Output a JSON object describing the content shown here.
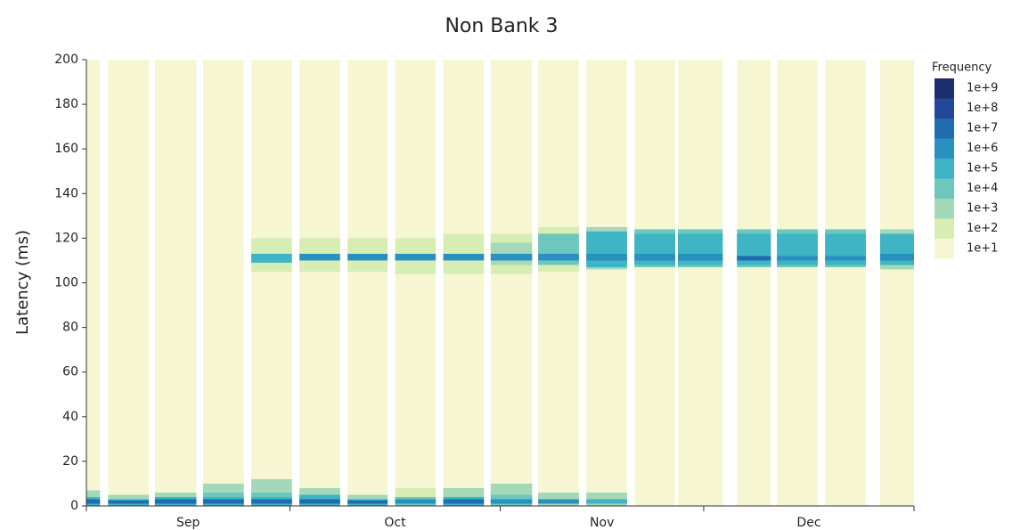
{
  "chart_data": {
    "type": "heatmap",
    "title": "Non Bank 3",
    "y_label": "Latency (ms)",
    "ylim": [
      0,
      200
    ],
    "yticks": [
      0,
      20,
      40,
      60,
      80,
      100,
      120,
      140,
      160,
      180,
      200
    ],
    "xlim": [
      0,
      122
    ],
    "xticks": [
      0,
      30,
      61,
      91,
      122
    ],
    "month_labels": [
      "Sep",
      "Oct",
      "Nov",
      "Dec"
    ],
    "legend_title": "Frequency",
    "legend": [
      {
        "value": 9,
        "label": "1e+9",
        "color": "#1d2e6e"
      },
      {
        "value": 8,
        "label": "1e+8",
        "color": "#22479b"
      },
      {
        "value": 7,
        "label": "1e+7",
        "color": "#1f6cb0"
      },
      {
        "value": 6,
        "label": "1e+6",
        "color": "#2a90c0"
      },
      {
        "value": 5,
        "label": "1e+5",
        "color": "#3eb4c4"
      },
      {
        "value": 4,
        "label": "1e+4",
        "color": "#6cc7bf"
      },
      {
        "value": 3,
        "label": "1e+3",
        "color": "#a3d9b8"
      },
      {
        "value": 2,
        "label": "1e+2",
        "color": "#d6edb4"
      },
      {
        "value": 1,
        "label": "1e+1",
        "color": "#f6f7d2"
      }
    ],
    "columns": [
      {
        "x0": 0,
        "x1": 2.0,
        "cells": [
          {
            "y0": 0,
            "y1": 200,
            "level": 1
          },
          {
            "y0": 0,
            "y1": 7,
            "level": 3
          },
          {
            "y0": 0,
            "y1": 4,
            "level": 5
          },
          {
            "y0": 1,
            "y1": 3,
            "level": 7
          }
        ]
      },
      {
        "x0": 3.2,
        "x1": 9.2,
        "cells": [
          {
            "y0": 0,
            "y1": 200,
            "level": 1
          },
          {
            "y0": 0,
            "y1": 5,
            "level": 3
          },
          {
            "y0": 0,
            "y1": 3,
            "level": 5
          },
          {
            "y0": 1,
            "y1": 2.5,
            "level": 7
          }
        ]
      },
      {
        "x0": 10.1,
        "x1": 16.2,
        "cells": [
          {
            "y0": 0,
            "y1": 200,
            "level": 1
          },
          {
            "y0": 0,
            "y1": 6,
            "level": 3
          },
          {
            "y0": 0,
            "y1": 4,
            "level": 5
          },
          {
            "y0": 1,
            "y1": 3,
            "level": 7
          }
        ]
      },
      {
        "x0": 17.2,
        "x1": 23.2,
        "cells": [
          {
            "y0": 0,
            "y1": 200,
            "level": 1
          },
          {
            "y0": 0,
            "y1": 10,
            "level": 3
          },
          {
            "y0": 0,
            "y1": 6,
            "level": 4
          },
          {
            "y0": 0,
            "y1": 4,
            "level": 5
          },
          {
            "y0": 1,
            "y1": 3,
            "level": 7
          }
        ]
      },
      {
        "x0": 24.3,
        "x1": 30.3,
        "cells": [
          {
            "y0": 0,
            "y1": 200,
            "level": 1
          },
          {
            "y0": 0,
            "y1": 12,
            "level": 3
          },
          {
            "y0": 0,
            "y1": 6,
            "level": 4
          },
          {
            "y0": 0,
            "y1": 4,
            "level": 5
          },
          {
            "y0": 1,
            "y1": 3,
            "level": 7
          },
          {
            "y0": 105,
            "y1": 120,
            "level": 2
          },
          {
            "y0": 109,
            "y1": 113,
            "level": 5
          }
        ]
      },
      {
        "x0": 31.4,
        "x1": 37.4,
        "cells": [
          {
            "y0": 0,
            "y1": 200,
            "level": 1
          },
          {
            "y0": 0,
            "y1": 8,
            "level": 3
          },
          {
            "y0": 0,
            "y1": 5,
            "level": 5
          },
          {
            "y0": 1,
            "y1": 3,
            "level": 7
          },
          {
            "y0": 105,
            "y1": 120,
            "level": 2
          },
          {
            "y0": 110,
            "y1": 113,
            "level": 6
          }
        ]
      },
      {
        "x0": 38.5,
        "x1": 44.4,
        "cells": [
          {
            "y0": 0,
            "y1": 200,
            "level": 1
          },
          {
            "y0": 0,
            "y1": 5,
            "level": 3
          },
          {
            "y0": 0,
            "y1": 3,
            "level": 5
          },
          {
            "y0": 1,
            "y1": 2.5,
            "level": 7
          },
          {
            "y0": 105,
            "y1": 120,
            "level": 2
          },
          {
            "y0": 110,
            "y1": 113,
            "level": 6
          }
        ]
      },
      {
        "x0": 45.5,
        "x1": 51.5,
        "cells": [
          {
            "y0": 0,
            "y1": 200,
            "level": 1
          },
          {
            "y0": 0,
            "y1": 8,
            "level": 2
          },
          {
            "y0": 0,
            "y1": 4,
            "level": 4
          },
          {
            "y0": 1,
            "y1": 3,
            "level": 6
          },
          {
            "y0": 104,
            "y1": 120,
            "level": 2
          },
          {
            "y0": 110,
            "y1": 113,
            "level": 6
          }
        ]
      },
      {
        "x0": 52.6,
        "x1": 58.6,
        "cells": [
          {
            "y0": 0,
            "y1": 200,
            "level": 1
          },
          {
            "y0": 0,
            "y1": 8,
            "level": 3
          },
          {
            "y0": 0,
            "y1": 4,
            "level": 5
          },
          {
            "y0": 1,
            "y1": 3,
            "level": 7
          },
          {
            "y0": 104,
            "y1": 122,
            "level": 2
          },
          {
            "y0": 110,
            "y1": 113,
            "level": 6
          }
        ]
      },
      {
        "x0": 59.6,
        "x1": 65.7,
        "cells": [
          {
            "y0": 0,
            "y1": 200,
            "level": 1
          },
          {
            "y0": 0,
            "y1": 10,
            "level": 3
          },
          {
            "y0": 0,
            "y1": 5,
            "level": 4
          },
          {
            "y0": 1,
            "y1": 3,
            "level": 6
          },
          {
            "y0": 104,
            "y1": 122,
            "level": 2
          },
          {
            "y0": 108,
            "y1": 118,
            "level": 3
          },
          {
            "y0": 110,
            "y1": 113,
            "level": 6
          }
        ]
      },
      {
        "x0": 66.6,
        "x1": 72.6,
        "cells": [
          {
            "y0": 0,
            "y1": 200,
            "level": 1
          },
          {
            "y0": 0,
            "y1": 6,
            "level": 3
          },
          {
            "y0": 1,
            "y1": 3,
            "level": 6
          },
          {
            "y0": 105,
            "y1": 125,
            "level": 2
          },
          {
            "y0": 108,
            "y1": 122,
            "level": 4
          },
          {
            "y0": 110,
            "y1": 113,
            "level": 6
          }
        ]
      },
      {
        "x0": 73.7,
        "x1": 79.7,
        "cells": [
          {
            "y0": 0,
            "y1": 200,
            "level": 1
          },
          {
            "y0": 0,
            "y1": 6,
            "level": 3
          },
          {
            "y0": 1,
            "y1": 3,
            "level": 5
          },
          {
            "y0": 106,
            "y1": 125,
            "level": 3
          },
          {
            "y0": 107,
            "y1": 123,
            "level": 5
          },
          {
            "y0": 110,
            "y1": 113,
            "level": 6
          }
        ]
      },
      {
        "x0": 80.8,
        "x1": 86.8,
        "cells": [
          {
            "y0": 0,
            "y1": 200,
            "level": 1
          },
          {
            "y0": 107,
            "y1": 124,
            "level": 4
          },
          {
            "y0": 108,
            "y1": 122,
            "level": 5
          },
          {
            "y0": 110,
            "y1": 113,
            "level": 6
          }
        ]
      },
      {
        "x0": 87.2,
        "x1": 93.8,
        "cells": [
          {
            "y0": 0,
            "y1": 200,
            "level": 1
          },
          {
            "y0": 107,
            "y1": 124,
            "level": 4
          },
          {
            "y0": 108,
            "y1": 122,
            "level": 5
          },
          {
            "y0": 110,
            "y1": 113,
            "level": 6
          }
        ]
      },
      {
        "x0": 95.9,
        "x1": 100.9,
        "cells": [
          {
            "y0": 0,
            "y1": 200,
            "level": 1
          },
          {
            "y0": 107,
            "y1": 124,
            "level": 4
          },
          {
            "y0": 108,
            "y1": 122,
            "level": 5
          },
          {
            "y0": 110,
            "y1": 112,
            "level": 7
          }
        ]
      },
      {
        "x0": 101.8,
        "x1": 107.8,
        "cells": [
          {
            "y0": 0,
            "y1": 200,
            "level": 1
          },
          {
            "y0": 107,
            "y1": 124,
            "level": 4
          },
          {
            "y0": 108,
            "y1": 122,
            "level": 5
          },
          {
            "y0": 110,
            "y1": 112,
            "level": 6
          }
        ]
      },
      {
        "x0": 108.9,
        "x1": 114.9,
        "cells": [
          {
            "y0": 0,
            "y1": 200,
            "level": 1
          },
          {
            "y0": 107,
            "y1": 124,
            "level": 4
          },
          {
            "y0": 108,
            "y1": 122,
            "level": 5
          },
          {
            "y0": 110,
            "y1": 112,
            "level": 6
          }
        ]
      },
      {
        "x0": 117,
        "x1": 122,
        "cells": [
          {
            "y0": 0,
            "y1": 200,
            "level": 1
          },
          {
            "y0": 106,
            "y1": 124,
            "level": 3
          },
          {
            "y0": 108,
            "y1": 122,
            "level": 5
          },
          {
            "y0": 110,
            "y1": 113,
            "level": 6
          }
        ]
      }
    ]
  }
}
